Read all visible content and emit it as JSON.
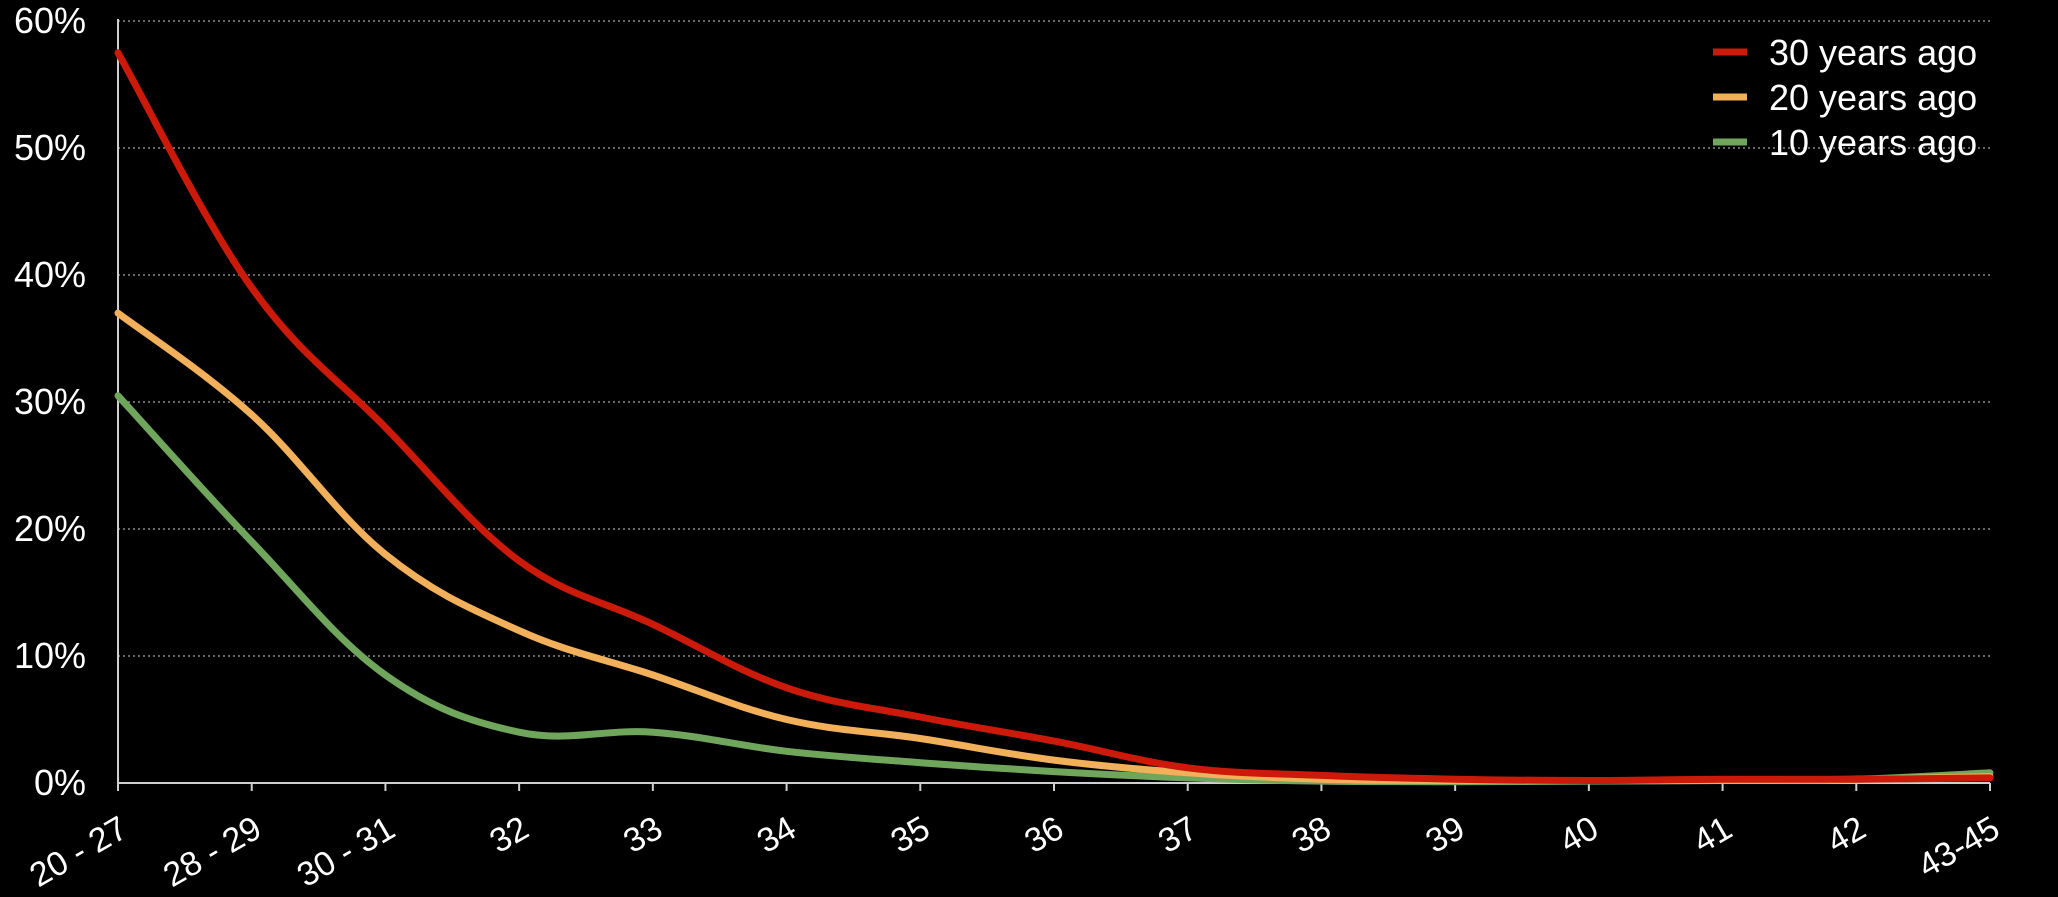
{
  "chart_data": {
    "type": "line",
    "title": "",
    "xlabel": "",
    "ylabel": "",
    "categories": [
      "20 - 27",
      "28 - 29",
      "30 - 31",
      "32",
      "33",
      "34",
      "35",
      "36",
      "37",
      "38",
      "39",
      "40",
      "41",
      "42",
      "43-45"
    ],
    "ylim": [
      0,
      60
    ],
    "yticks": [
      0,
      10,
      20,
      30,
      40,
      50,
      60
    ],
    "ytick_labels": [
      "0%",
      "10%",
      "20%",
      "30%",
      "40%",
      "50%",
      "60%"
    ],
    "grid": true,
    "legend_position": "top-right",
    "series": [
      {
        "name": "30 years ago",
        "color": "#cc1a0a",
        "values": [
          57.5,
          39.0,
          28.0,
          17.5,
          12.5,
          7.5,
          5.2,
          3.3,
          1.2,
          0.6,
          0.3,
          0.2,
          0.3,
          0.3,
          0.4
        ]
      },
      {
        "name": "20 years ago",
        "color": "#f2b05a",
        "values": [
          37.0,
          29.0,
          18.0,
          12.0,
          8.5,
          5.0,
          3.5,
          1.8,
          0.8,
          0.3,
          0.2,
          0.2,
          0.2,
          0.3,
          0.5
        ]
      },
      {
        "name": "10 years ago",
        "color": "#6fa65c",
        "values": [
          30.5,
          19.0,
          8.5,
          4.0,
          4.0,
          2.5,
          1.6,
          0.9,
          0.4,
          0.15,
          0.1,
          0.15,
          0.2,
          0.3,
          0.8
        ]
      }
    ]
  }
}
